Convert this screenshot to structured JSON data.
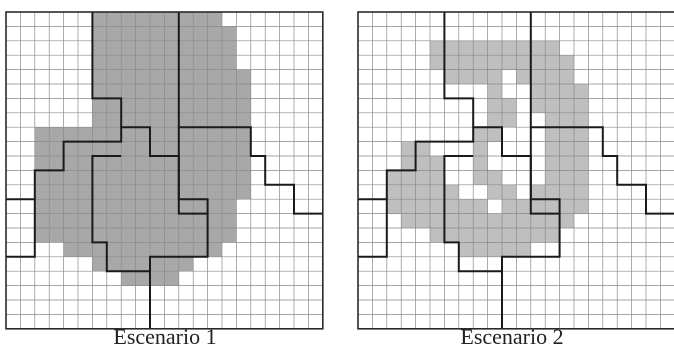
{
  "panels": [
    {
      "caption": "Escenario 1",
      "fill": "#9e9e9e",
      "fill_opacity": 0.9
    },
    {
      "caption": "Escenario 2",
      "fill": "#b4b4b4",
      "fill_opacity": 0.85
    }
  ],
  "colors": {
    "grid_line": "#8a8a8a",
    "region_border": "#1a1a1a",
    "frame": "#2a2a2a",
    "background": "#ffffff"
  }
}
